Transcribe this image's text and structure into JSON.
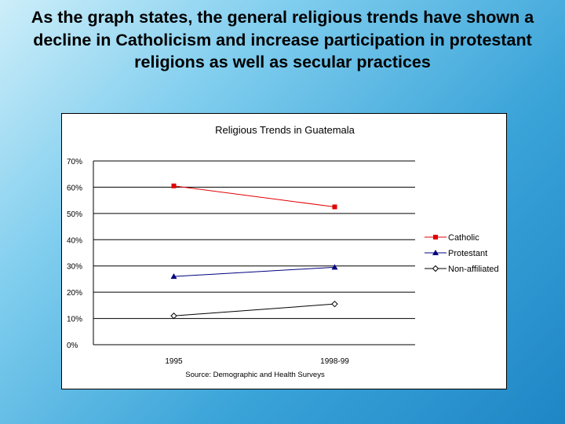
{
  "slide": {
    "title": "As the graph states, the general religious trends have shown a decline in Catholicism and increase participation in protestant religions as well as secular practices"
  },
  "chart_data": {
    "type": "line",
    "title": "Religious Trends in Guatemala",
    "categories": [
      "1995",
      "1998-99"
    ],
    "series": [
      {
        "name": "Catholic",
        "values": [
          0.605,
          0.525
        ],
        "color": "#e00000",
        "marker": "square"
      },
      {
        "name": "Protestant",
        "values": [
          0.26,
          0.295
        ],
        "color": "#000080",
        "marker": "triangle"
      },
      {
        "name": "Non-affiliated",
        "values": [
          0.11,
          0.155
        ],
        "color": "#000000",
        "marker": "diamond-open"
      }
    ],
    "ylim": [
      0,
      0.7
    ],
    "yticks": [
      "0%",
      "10%",
      "20%",
      "30%",
      "40%",
      "50%",
      "60%",
      "70%"
    ],
    "grid": true,
    "legend": "right",
    "source": "Source: Demographic and Health Surveys",
    "xlabel": "",
    "ylabel": ""
  }
}
